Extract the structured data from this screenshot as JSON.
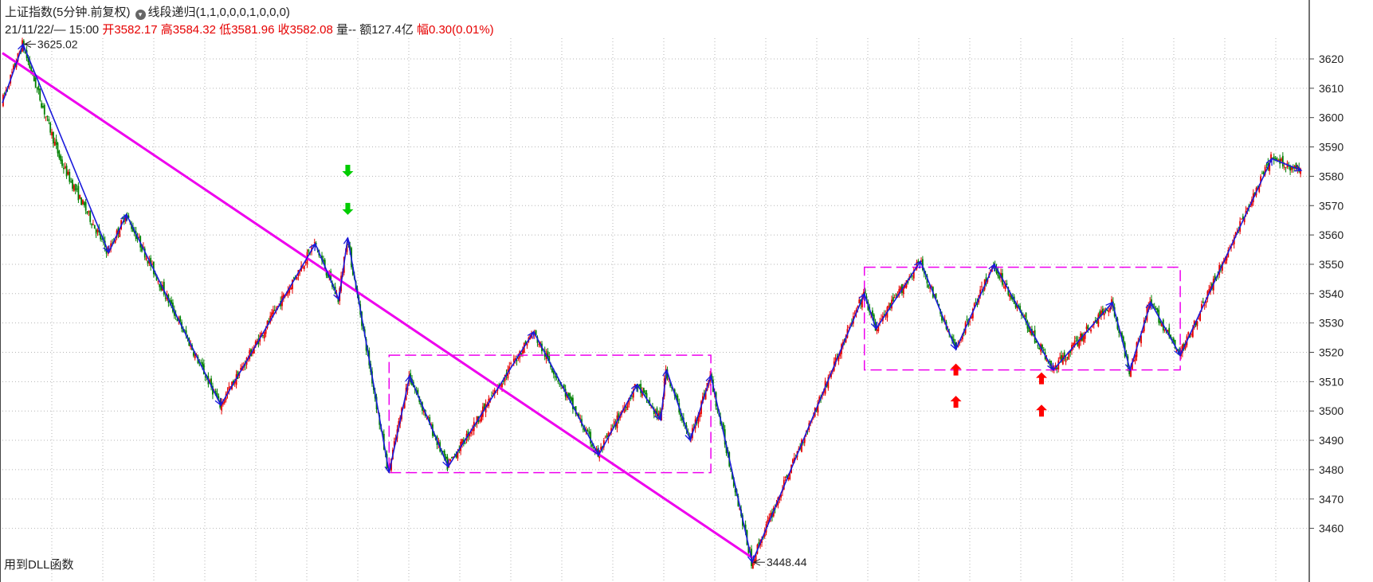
{
  "header": {
    "title": "上证指数(5分钟.前复权)",
    "indicator": "线段递归(1,1,0,0,0,1,0,0,0)",
    "datetime": "21/11/22/— 15:00",
    "open_label": "开",
    "open": "3582.17",
    "high_label": "高",
    "high": "3584.32",
    "low_label": "低",
    "low": "3581.96",
    "close_label": "收",
    "close": "3582.08",
    "volume_label": "量",
    "volume": "--",
    "amount_label": "额",
    "amount": "127.4亿",
    "change_label": "幅",
    "change": "0.30(0.01%)"
  },
  "footer_note": "用到DLL函数",
  "colors": {
    "up": "#e60000",
    "down": "#008000",
    "segment": "#1a1adc",
    "trend": "#ee00ee",
    "box": "#ee00ee",
    "buy_arrow": "#ff0000",
    "sell_arrow": "#00cc00",
    "grid": "#b5b5b5"
  },
  "chart_data": {
    "type": "candlestick",
    "ylim": [
      3448,
      3626
    ],
    "x_index_range": [
      0,
      440
    ],
    "y_ticks": [
      3460,
      3470,
      3480,
      3490,
      3500,
      3510,
      3520,
      3530,
      3540,
      3550,
      3560,
      3570,
      3580,
      3590,
      3600,
      3610,
      3620
    ],
    "annotations": [
      {
        "text": "3625.02",
        "x": 7,
        "y": 3625.02
      },
      {
        "text": "3448.44",
        "x": 254,
        "y": 3448.44
      }
    ],
    "path_points": [
      [
        0,
        3605
      ],
      [
        7,
        3625.02
      ],
      [
        20,
        3585
      ],
      [
        36,
        3554
      ],
      [
        42,
        3567
      ],
      [
        74,
        3502
      ],
      [
        106,
        3557
      ],
      [
        114,
        3538
      ],
      [
        117,
        3559
      ],
      [
        131,
        3479
      ],
      [
        138,
        3512
      ],
      [
        151,
        3481
      ],
      [
        180,
        3527
      ],
      [
        202,
        3485
      ],
      [
        215,
        3509
      ],
      [
        223,
        3497
      ],
      [
        225,
        3514
      ],
      [
        233,
        3490
      ],
      [
        240,
        3512
      ],
      [
        254,
        3448.44
      ],
      [
        292,
        3540
      ],
      [
        296,
        3528
      ],
      [
        311,
        3551
      ],
      [
        323,
        3521
      ],
      [
        336,
        3550
      ],
      [
        356,
        3514
      ],
      [
        376,
        3537
      ],
      [
        382,
        3514
      ],
      [
        389,
        3537
      ],
      [
        399,
        3519
      ],
      [
        430,
        3586
      ],
      [
        440,
        3582
      ]
    ],
    "zigzag": [
      [
        0,
        3605
      ],
      [
        7,
        3625.02
      ],
      [
        36,
        3554
      ],
      [
        42,
        3567
      ],
      [
        74,
        3502
      ],
      [
        106,
        3557
      ],
      [
        114,
        3538
      ],
      [
        117,
        3559
      ],
      [
        131,
        3479
      ],
      [
        138,
        3512
      ],
      [
        151,
        3481
      ],
      [
        180,
        3527
      ],
      [
        202,
        3485
      ],
      [
        215,
        3509
      ],
      [
        223,
        3497
      ],
      [
        225,
        3514
      ],
      [
        233,
        3490
      ],
      [
        240,
        3512
      ],
      [
        254,
        3448.44
      ],
      [
        292,
        3540
      ],
      [
        296,
        3528
      ],
      [
        311,
        3551
      ],
      [
        323,
        3521
      ],
      [
        336,
        3550
      ],
      [
        356,
        3514
      ],
      [
        376,
        3537
      ],
      [
        382,
        3514
      ],
      [
        389,
        3537
      ],
      [
        399,
        3519
      ],
      [
        430,
        3586
      ],
      [
        440,
        3582
      ]
    ],
    "trend_line": [
      [
        0,
        3622
      ],
      [
        254,
        3450
      ]
    ],
    "boxes": [
      {
        "x1": 131,
        "x2": 240,
        "y1": 3479,
        "y2": 3519
      },
      {
        "x1": 292,
        "x2": 399,
        "y1": 3514,
        "y2": 3549
      }
    ],
    "sell_markers": [
      {
        "x": 117,
        "y": 3582
      },
      {
        "x": 117,
        "y": 3569
      }
    ],
    "buy_markers": [
      {
        "x": 323,
        "y": 3514
      },
      {
        "x": 323,
        "y": 3503
      },
      {
        "x": 352,
        "y": 3511
      },
      {
        "x": 352,
        "y": 3500
      }
    ]
  }
}
